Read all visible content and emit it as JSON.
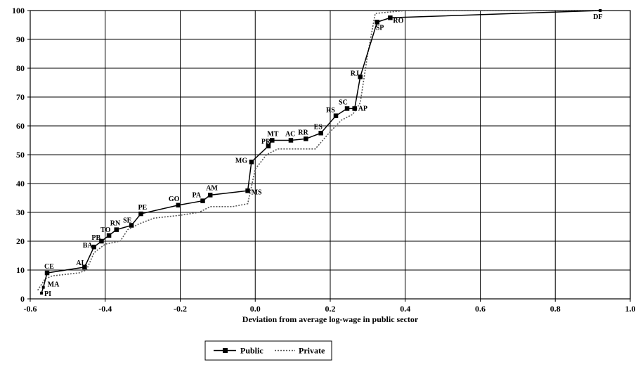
{
  "chart_data": {
    "type": "line",
    "title": "",
    "xlabel": "Deviation from average log-wage in public sector",
    "ylabel": "",
    "xlim": [
      -0.6,
      1.0
    ],
    "ylim": [
      0,
      100
    ],
    "x_ticks": [
      "-0.6",
      "-0.4",
      "-0.2",
      "0.0",
      "0.2",
      "0.4",
      "0.6",
      "0.8",
      "1.0"
    ],
    "y_ticks": [
      "0",
      "10",
      "20",
      "30",
      "40",
      "50",
      "60",
      "70",
      "80",
      "90",
      "100"
    ],
    "grid": true,
    "legend_position": "bottom-center",
    "series": [
      {
        "name": "Public",
        "color": "#000000",
        "marker": "square",
        "points": [
          {
            "label": "PI",
            "x": -0.57,
            "y": 2
          },
          {
            "label": "MA",
            "x": -0.565,
            "y": 4
          },
          {
            "label": "CE",
            "x": -0.555,
            "y": 9
          },
          {
            "label": "AL",
            "x": -0.455,
            "y": 11
          },
          {
            "label": "BA",
            "x": -0.43,
            "y": 18
          },
          {
            "label": "PB",
            "x": -0.41,
            "y": 20
          },
          {
            "label": "TO",
            "x": -0.39,
            "y": 22
          },
          {
            "label": "RN",
            "x": -0.37,
            "y": 24
          },
          {
            "label": "SE",
            "x": -0.33,
            "y": 25.5
          },
          {
            "label": "PE",
            "x": -0.305,
            "y": 29.5
          },
          {
            "label": "GO",
            "x": -0.205,
            "y": 32.5
          },
          {
            "label": "PA",
            "x": -0.14,
            "y": 34
          },
          {
            "label": "AM",
            "x": -0.12,
            "y": 36
          },
          {
            "label": "MS",
            "x": -0.02,
            "y": 37.5
          },
          {
            "label": "MG",
            "x": -0.01,
            "y": 47.5
          },
          {
            "label": "PR",
            "x": 0.035,
            "y": 53
          },
          {
            "label": "MT",
            "x": 0.045,
            "y": 55
          },
          {
            "label": "AC",
            "x": 0.095,
            "y": 55
          },
          {
            "label": "RR",
            "x": 0.135,
            "y": 55.5
          },
          {
            "label": "ES",
            "x": 0.175,
            "y": 57.5
          },
          {
            "label": "RS",
            "x": 0.215,
            "y": 63.5
          },
          {
            "label": "SC",
            "x": 0.245,
            "y": 66
          },
          {
            "label": "AP",
            "x": 0.265,
            "y": 66
          },
          {
            "label": "RJ",
            "x": 0.28,
            "y": 77
          },
          {
            "label": "SP",
            "x": 0.325,
            "y": 96
          },
          {
            "label": "RO",
            "x": 0.36,
            "y": 97.5
          },
          {
            "label": "DF",
            "x": 0.92,
            "y": 100
          }
        ]
      },
      {
        "name": "Private",
        "color": "#555555",
        "marker": "none",
        "points": [
          {
            "x": -0.58,
            "y": 3
          },
          {
            "x": -0.56,
            "y": 7
          },
          {
            "x": -0.54,
            "y": 8
          },
          {
            "x": -0.47,
            "y": 9
          },
          {
            "x": -0.45,
            "y": 10
          },
          {
            "x": -0.43,
            "y": 16
          },
          {
            "x": -0.4,
            "y": 19
          },
          {
            "x": -0.36,
            "y": 20
          },
          {
            "x": -0.34,
            "y": 24
          },
          {
            "x": -0.31,
            "y": 26
          },
          {
            "x": -0.27,
            "y": 28
          },
          {
            "x": -0.2,
            "y": 29
          },
          {
            "x": -0.15,
            "y": 30
          },
          {
            "x": -0.12,
            "y": 32
          },
          {
            "x": -0.06,
            "y": 32
          },
          {
            "x": -0.02,
            "y": 33
          },
          {
            "x": 0.0,
            "y": 45
          },
          {
            "x": 0.03,
            "y": 50
          },
          {
            "x": 0.06,
            "y": 52
          },
          {
            "x": 0.16,
            "y": 52
          },
          {
            "x": 0.2,
            "y": 58
          },
          {
            "x": 0.23,
            "y": 62
          },
          {
            "x": 0.26,
            "y": 64
          },
          {
            "x": 0.28,
            "y": 68
          },
          {
            "x": 0.3,
            "y": 85
          },
          {
            "x": 0.32,
            "y": 99
          },
          {
            "x": 0.4,
            "y": 100
          },
          {
            "x": 0.92,
            "y": 100
          }
        ]
      }
    ]
  }
}
